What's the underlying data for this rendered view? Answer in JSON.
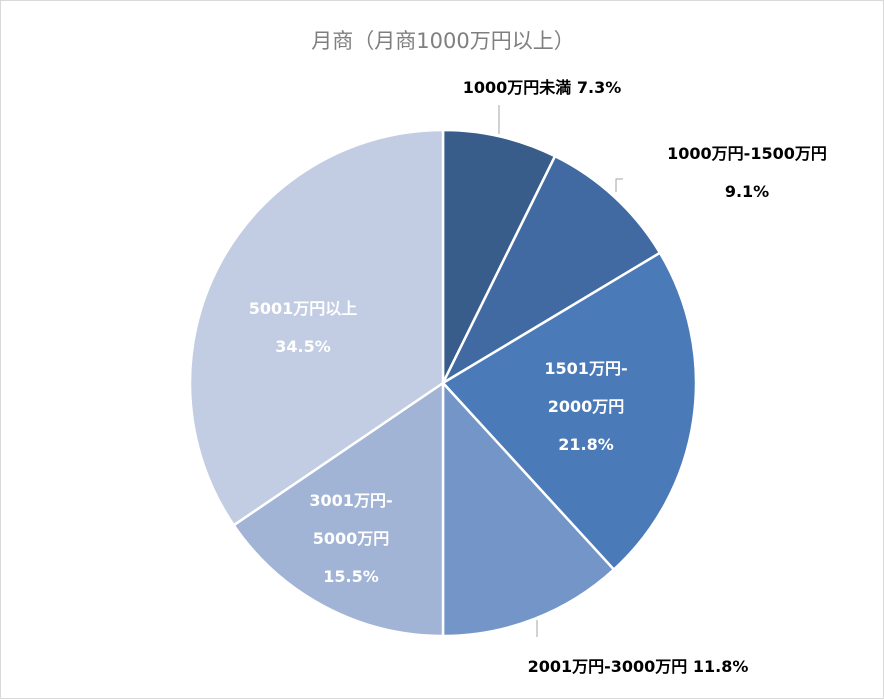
{
  "chart_data": {
    "type": "pie",
    "title": "月商（月商1000万円以上）",
    "slices": [
      {
        "category": "1000万円未満",
        "value": 7.3,
        "label_lines": [
          "1000万円未満 7.3%"
        ],
        "color": "#385d8a"
      },
      {
        "category": "1000万円-1500万円",
        "value": 9.1,
        "label_lines": [
          "1000万円-1500万円",
          "9.1%"
        ],
        "color": "#4169a2"
      },
      {
        "category": "1501万円-2000万円",
        "value": 21.8,
        "label_lines": [
          "1501万円-",
          "2000万円",
          "21.8%"
        ],
        "color": "#4a7ab7"
      },
      {
        "category": "2001万円-3000万円",
        "value": 11.8,
        "label_lines": [
          "2001万円-3000万円 11.8%"
        ],
        "color": "#7395c8"
      },
      {
        "category": "3001万円-5000万円",
        "value": 15.5,
        "label_lines": [
          "3001万円-",
          "5000万円",
          "15.5%"
        ],
        "color": "#a1b4d6"
      },
      {
        "category": "5001万円以上",
        "value": 34.5,
        "label_lines": [
          "5001万円以上",
          "34.5%"
        ],
        "color": "#c2cce2"
      }
    ],
    "legend": "none",
    "unit": "%"
  }
}
